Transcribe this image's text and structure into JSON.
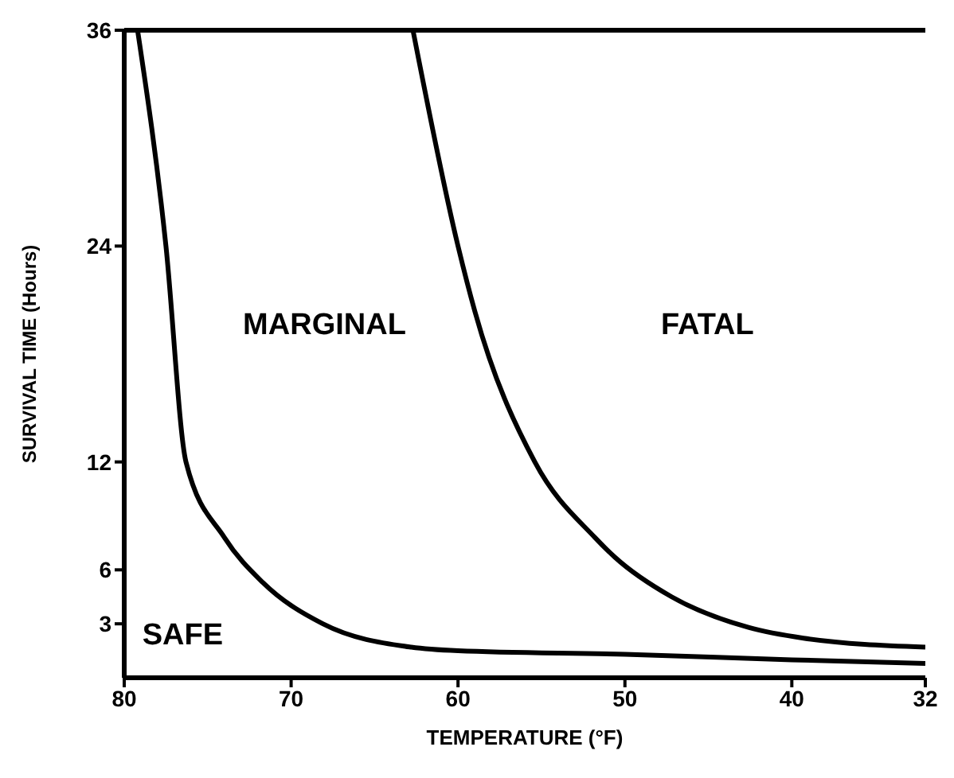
{
  "chart_data": {
    "type": "line",
    "xlabel": "TEMPERATURE (°F)",
    "ylabel": "SURVIVAL TIME (Hours)",
    "xlim": [
      80,
      32
    ],
    "xticks": [
      80,
      70,
      60,
      50,
      40,
      32
    ],
    "ylim": [
      0,
      36
    ],
    "yticks": [
      3,
      6,
      12,
      24,
      36
    ],
    "series": [
      {
        "color": "#000000",
        "x": [
          79.2,
          77.5,
          76.3,
          74.0,
          71.7,
          68.1,
          62.8,
          60,
          50,
          40,
          32
        ],
        "values": [
          36,
          24,
          12,
          7.8,
          5.3,
          3,
          1.7,
          1.5,
          1.3,
          1.0,
          0.8
        ]
      },
      {
        "color": "#000000",
        "x": [
          62.7,
          60,
          59,
          55.4,
          51.8,
          50.6,
          47.2,
          42.6,
          39.3,
          32
        ],
        "values": [
          36,
          24,
          20.4,
          12,
          7.8,
          6.7,
          4.5,
          2.8,
          2.2,
          1.7
        ]
      }
    ],
    "annotations": [
      "MARGINAL",
      "FATAL",
      "SAFE"
    ]
  }
}
